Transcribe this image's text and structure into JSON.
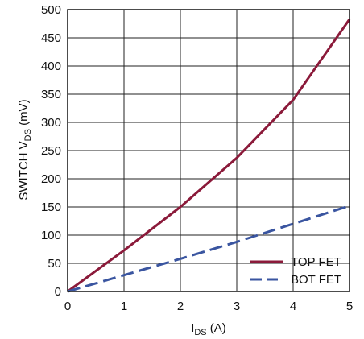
{
  "chart_data": {
    "type": "line",
    "xlabel": {
      "main": "I",
      "sub": "DS",
      "unit": " (A)"
    },
    "ylabel": {
      "pre": "SWITCH V",
      "sub": "DS",
      "post": " (mV)"
    },
    "xlim": [
      0,
      5
    ],
    "ylim": [
      0,
      500
    ],
    "x_ticks": [
      0,
      1,
      2,
      3,
      4,
      5
    ],
    "x_tick_labels": [
      "0",
      "1",
      "2",
      "3",
      "4",
      "5"
    ],
    "y_ticks": [
      0,
      50,
      100,
      150,
      200,
      250,
      300,
      350,
      400,
      450,
      500
    ],
    "y_tick_labels": [
      "0",
      "50",
      "100",
      "150",
      "200",
      "250",
      "300",
      "350",
      "400",
      "450",
      "500"
    ],
    "grid": true,
    "legend_position": "bottom-right",
    "series": [
      {
        "name": "TOP FET",
        "color": "#8b1a3a",
        "style": "solid",
        "x": [
          0,
          1,
          2,
          3,
          4,
          5
        ],
        "y": [
          0,
          73,
          150,
          237,
          340,
          483
        ]
      },
      {
        "name": "BOT FET",
        "color": "#3a55a0",
        "style": "dashed",
        "x": [
          0,
          1,
          2,
          3,
          4,
          5
        ],
        "y": [
          0,
          29,
          58,
          88,
          120,
          152
        ]
      }
    ]
  }
}
